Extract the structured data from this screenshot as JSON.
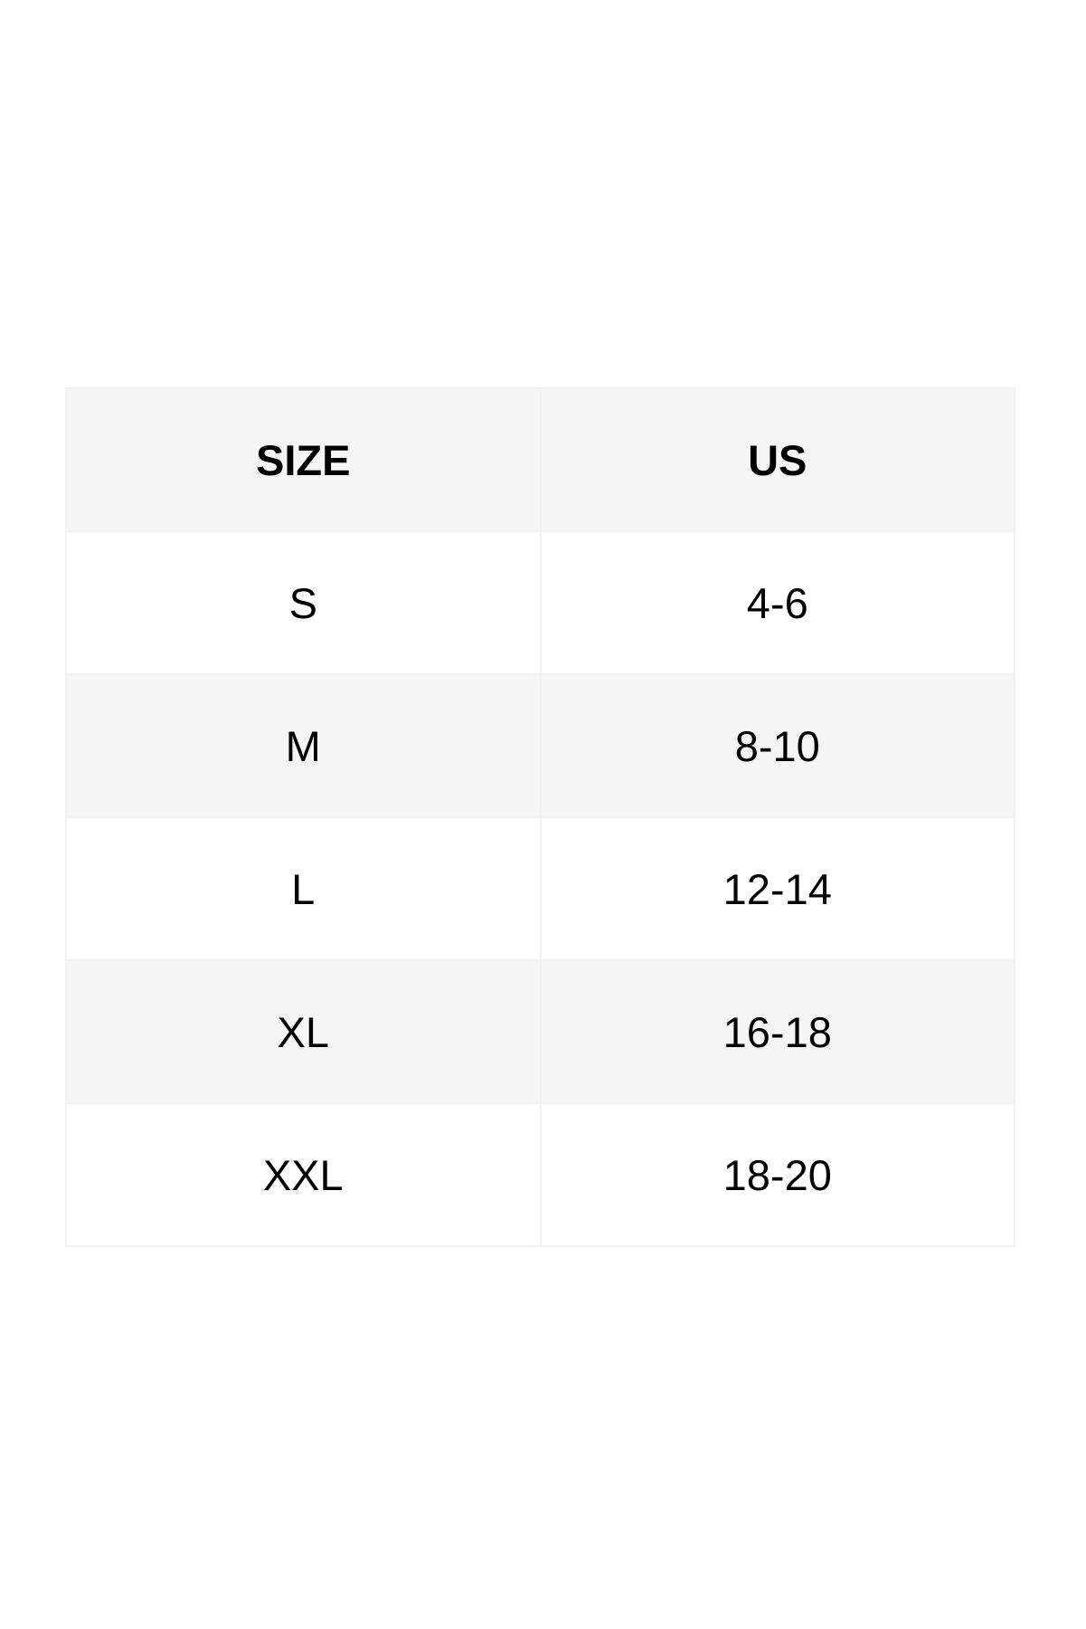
{
  "table": {
    "header": [
      "SIZE",
      "US"
    ],
    "rows": [
      [
        "S",
        "4-6"
      ],
      [
        "M",
        "8-10"
      ],
      [
        "L",
        "12-14"
      ],
      [
        "XL",
        "16-18"
      ],
      [
        "XXL",
        "18-20"
      ]
    ]
  }
}
